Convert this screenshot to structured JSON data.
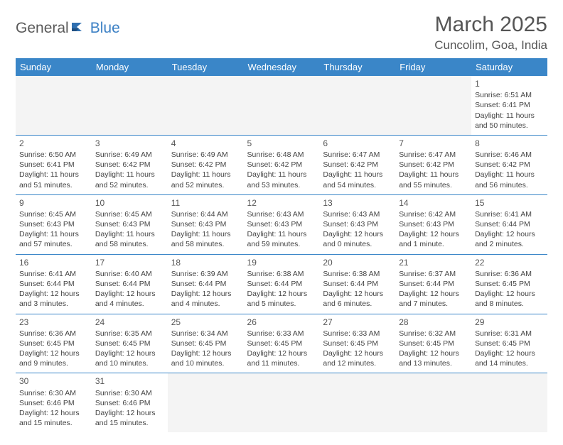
{
  "logo": {
    "text1": "General",
    "text2": "Blue"
  },
  "title": "March 2025",
  "location": "Cuncolim, Goa, India",
  "colors": {
    "header_bg": "#3a86c8",
    "header_text": "#ffffff",
    "border": "#3a86c8",
    "text": "#444444",
    "empty_bg": "#f4f4f4",
    "logo_blue": "#3a7fc4"
  },
  "weekdays": [
    "Sunday",
    "Monday",
    "Tuesday",
    "Wednesday",
    "Thursday",
    "Friday",
    "Saturday"
  ],
  "weeks": [
    [
      null,
      null,
      null,
      null,
      null,
      null,
      {
        "d": "1",
        "sr": "Sunrise: 6:51 AM",
        "ss": "Sunset: 6:41 PM",
        "dl1": "Daylight: 11 hours",
        "dl2": "and 50 minutes."
      }
    ],
    [
      {
        "d": "2",
        "sr": "Sunrise: 6:50 AM",
        "ss": "Sunset: 6:41 PM",
        "dl1": "Daylight: 11 hours",
        "dl2": "and 51 minutes."
      },
      {
        "d": "3",
        "sr": "Sunrise: 6:49 AM",
        "ss": "Sunset: 6:42 PM",
        "dl1": "Daylight: 11 hours",
        "dl2": "and 52 minutes."
      },
      {
        "d": "4",
        "sr": "Sunrise: 6:49 AM",
        "ss": "Sunset: 6:42 PM",
        "dl1": "Daylight: 11 hours",
        "dl2": "and 52 minutes."
      },
      {
        "d": "5",
        "sr": "Sunrise: 6:48 AM",
        "ss": "Sunset: 6:42 PM",
        "dl1": "Daylight: 11 hours",
        "dl2": "and 53 minutes."
      },
      {
        "d": "6",
        "sr": "Sunrise: 6:47 AM",
        "ss": "Sunset: 6:42 PM",
        "dl1": "Daylight: 11 hours",
        "dl2": "and 54 minutes."
      },
      {
        "d": "7",
        "sr": "Sunrise: 6:47 AM",
        "ss": "Sunset: 6:42 PM",
        "dl1": "Daylight: 11 hours",
        "dl2": "and 55 minutes."
      },
      {
        "d": "8",
        "sr": "Sunrise: 6:46 AM",
        "ss": "Sunset: 6:42 PM",
        "dl1": "Daylight: 11 hours",
        "dl2": "and 56 minutes."
      }
    ],
    [
      {
        "d": "9",
        "sr": "Sunrise: 6:45 AM",
        "ss": "Sunset: 6:43 PM",
        "dl1": "Daylight: 11 hours",
        "dl2": "and 57 minutes."
      },
      {
        "d": "10",
        "sr": "Sunrise: 6:45 AM",
        "ss": "Sunset: 6:43 PM",
        "dl1": "Daylight: 11 hours",
        "dl2": "and 58 minutes."
      },
      {
        "d": "11",
        "sr": "Sunrise: 6:44 AM",
        "ss": "Sunset: 6:43 PM",
        "dl1": "Daylight: 11 hours",
        "dl2": "and 58 minutes."
      },
      {
        "d": "12",
        "sr": "Sunrise: 6:43 AM",
        "ss": "Sunset: 6:43 PM",
        "dl1": "Daylight: 11 hours",
        "dl2": "and 59 minutes."
      },
      {
        "d": "13",
        "sr": "Sunrise: 6:43 AM",
        "ss": "Sunset: 6:43 PM",
        "dl1": "Daylight: 12 hours",
        "dl2": "and 0 minutes."
      },
      {
        "d": "14",
        "sr": "Sunrise: 6:42 AM",
        "ss": "Sunset: 6:43 PM",
        "dl1": "Daylight: 12 hours",
        "dl2": "and 1 minute."
      },
      {
        "d": "15",
        "sr": "Sunrise: 6:41 AM",
        "ss": "Sunset: 6:44 PM",
        "dl1": "Daylight: 12 hours",
        "dl2": "and 2 minutes."
      }
    ],
    [
      {
        "d": "16",
        "sr": "Sunrise: 6:41 AM",
        "ss": "Sunset: 6:44 PM",
        "dl1": "Daylight: 12 hours",
        "dl2": "and 3 minutes."
      },
      {
        "d": "17",
        "sr": "Sunrise: 6:40 AM",
        "ss": "Sunset: 6:44 PM",
        "dl1": "Daylight: 12 hours",
        "dl2": "and 4 minutes."
      },
      {
        "d": "18",
        "sr": "Sunrise: 6:39 AM",
        "ss": "Sunset: 6:44 PM",
        "dl1": "Daylight: 12 hours",
        "dl2": "and 4 minutes."
      },
      {
        "d": "19",
        "sr": "Sunrise: 6:38 AM",
        "ss": "Sunset: 6:44 PM",
        "dl1": "Daylight: 12 hours",
        "dl2": "and 5 minutes."
      },
      {
        "d": "20",
        "sr": "Sunrise: 6:38 AM",
        "ss": "Sunset: 6:44 PM",
        "dl1": "Daylight: 12 hours",
        "dl2": "and 6 minutes."
      },
      {
        "d": "21",
        "sr": "Sunrise: 6:37 AM",
        "ss": "Sunset: 6:44 PM",
        "dl1": "Daylight: 12 hours",
        "dl2": "and 7 minutes."
      },
      {
        "d": "22",
        "sr": "Sunrise: 6:36 AM",
        "ss": "Sunset: 6:45 PM",
        "dl1": "Daylight: 12 hours",
        "dl2": "and 8 minutes."
      }
    ],
    [
      {
        "d": "23",
        "sr": "Sunrise: 6:36 AM",
        "ss": "Sunset: 6:45 PM",
        "dl1": "Daylight: 12 hours",
        "dl2": "and 9 minutes."
      },
      {
        "d": "24",
        "sr": "Sunrise: 6:35 AM",
        "ss": "Sunset: 6:45 PM",
        "dl1": "Daylight: 12 hours",
        "dl2": "and 10 minutes."
      },
      {
        "d": "25",
        "sr": "Sunrise: 6:34 AM",
        "ss": "Sunset: 6:45 PM",
        "dl1": "Daylight: 12 hours",
        "dl2": "and 10 minutes."
      },
      {
        "d": "26",
        "sr": "Sunrise: 6:33 AM",
        "ss": "Sunset: 6:45 PM",
        "dl1": "Daylight: 12 hours",
        "dl2": "and 11 minutes."
      },
      {
        "d": "27",
        "sr": "Sunrise: 6:33 AM",
        "ss": "Sunset: 6:45 PM",
        "dl1": "Daylight: 12 hours",
        "dl2": "and 12 minutes."
      },
      {
        "d": "28",
        "sr": "Sunrise: 6:32 AM",
        "ss": "Sunset: 6:45 PM",
        "dl1": "Daylight: 12 hours",
        "dl2": "and 13 minutes."
      },
      {
        "d": "29",
        "sr": "Sunrise: 6:31 AM",
        "ss": "Sunset: 6:45 PM",
        "dl1": "Daylight: 12 hours",
        "dl2": "and 14 minutes."
      }
    ],
    [
      {
        "d": "30",
        "sr": "Sunrise: 6:30 AM",
        "ss": "Sunset: 6:46 PM",
        "dl1": "Daylight: 12 hours",
        "dl2": "and 15 minutes."
      },
      {
        "d": "31",
        "sr": "Sunrise: 6:30 AM",
        "ss": "Sunset: 6:46 PM",
        "dl1": "Daylight: 12 hours",
        "dl2": "and 15 minutes."
      },
      null,
      null,
      null,
      null,
      null
    ]
  ]
}
